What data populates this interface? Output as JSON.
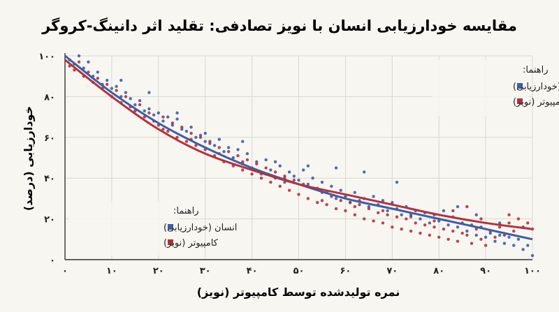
{
  "chart_data": {
    "type": "scatter",
    "title": "مقایسه خودارزیابی انسان با نویز تصادفی: تقلید اثر دانینگ-کروگر",
    "xlabel": "نمره تولیدشده توسط کامپیوتر (نویز)",
    "ylabel": "خودارزیابی (درصد)",
    "xlim": [
      0,
      100
    ],
    "ylim": [
      0,
      100
    ],
    "x_ticks": [
      "۰",
      "۱۰",
      "۲۰",
      "۳۰",
      "۴۰",
      "۵۰",
      "۶۰",
      "۷۰",
      "۸۰",
      "۹۰",
      "۱۰۰"
    ],
    "y_ticks": [
      "۰",
      "۲۰",
      "۴۰",
      "۶۰",
      "۸۰",
      "۱۰۰"
    ],
    "x_tick_values": [
      0,
      10,
      20,
      30,
      40,
      50,
      60,
      70,
      80,
      90,
      100
    ],
    "y_tick_values": [
      0,
      20,
      40,
      60,
      80,
      100
    ],
    "grid": true,
    "legends": [
      {
        "placement": "top-right",
        "title": "راهنما:",
        "entries": [
          "انسان (خودارزیابی)",
          "کامپیوتر (نویز)"
        ]
      },
      {
        "placement": "bottom-left",
        "title": "راهنما:",
        "entries": [
          "انسان (خودارزیابی)",
          "کامپیوتر (نویز)"
        ]
      }
    ],
    "series": [
      {
        "name": "انسان (خودارزیابی)",
        "color": "#3a5ea8",
        "trend": {
          "x": [
            0,
            10,
            20,
            30,
            40,
            50,
            60,
            70,
            80,
            90,
            100
          ],
          "y": [
            100,
            82,
            67,
            55,
            45,
            37,
            30,
            25,
            20,
            15,
            10
          ]
        },
        "points": [
          [
            1,
            98
          ],
          [
            2,
            96
          ],
          [
            3,
            100
          ],
          [
            4,
            94
          ],
          [
            5,
            97
          ],
          [
            6,
            90
          ],
          [
            7,
            92
          ],
          [
            8,
            86
          ],
          [
            9,
            88
          ],
          [
            10,
            84
          ],
          [
            11,
            85
          ],
          [
            12,
            80
          ],
          [
            13,
            82
          ],
          [
            14,
            79
          ],
          [
            15,
            76
          ],
          [
            16,
            78
          ],
          [
            17,
            73
          ],
          [
            18,
            74
          ],
          [
            19,
            71
          ],
          [
            20,
            72
          ],
          [
            21,
            68
          ],
          [
            22,
            70
          ],
          [
            23,
            66
          ],
          [
            24,
            69
          ],
          [
            25,
            64
          ],
          [
            26,
            63
          ],
          [
            27,
            65
          ],
          [
            28,
            60
          ],
          [
            29,
            61
          ],
          [
            30,
            58
          ],
          [
            31,
            57
          ],
          [
            32,
            56
          ],
          [
            33,
            59
          ],
          [
            34,
            53
          ],
          [
            35,
            55
          ],
          [
            36,
            50
          ],
          [
            37,
            54
          ],
          [
            38,
            47
          ],
          [
            39,
            52
          ],
          [
            40,
            45
          ],
          [
            41,
            48
          ],
          [
            42,
            42
          ],
          [
            43,
            49
          ],
          [
            44,
            44
          ],
          [
            45,
            40
          ],
          [
            46,
            46
          ],
          [
            47,
            38
          ],
          [
            48,
            43
          ],
          [
            49,
            41
          ],
          [
            50,
            39
          ],
          [
            51,
            44
          ],
          [
            52,
            37
          ],
          [
            53,
            40
          ],
          [
            54,
            35
          ],
          [
            55,
            38
          ],
          [
            56,
            33
          ],
          [
            57,
            36
          ],
          [
            58,
            30
          ],
          [
            59,
            34
          ],
          [
            60,
            31
          ],
          [
            61,
            28
          ],
          [
            62,
            33
          ],
          [
            63,
            29
          ],
          [
            64,
            30
          ],
          [
            65,
            26
          ],
          [
            66,
            31
          ],
          [
            67,
            27
          ],
          [
            68,
            29
          ],
          [
            69,
            24
          ],
          [
            70,
            28
          ],
          [
            71,
            25
          ],
          [
            72,
            22
          ],
          [
            73,
            26
          ],
          [
            74,
            21
          ],
          [
            75,
            24
          ],
          [
            76,
            20
          ],
          [
            77,
            23
          ],
          [
            78,
            18
          ],
          [
            79,
            22
          ],
          [
            80,
            19
          ],
          [
            81,
            24
          ],
          [
            82,
            17
          ],
          [
            83,
            21
          ],
          [
            84,
            16
          ],
          [
            85,
            18
          ],
          [
            86,
            14
          ],
          [
            87,
            17
          ],
          [
            88,
            12
          ],
          [
            89,
            16
          ],
          [
            90,
            11
          ],
          [
            91,
            13
          ],
          [
            92,
            9
          ],
          [
            93,
            12
          ],
          [
            94,
            8
          ],
          [
            95,
            11
          ],
          [
            96,
            7
          ],
          [
            97,
            10
          ],
          [
            98,
            5
          ],
          [
            99,
            7
          ],
          [
            100,
            2
          ],
          [
            58,
            45
          ],
          [
            64,
            43
          ],
          [
            71,
            38
          ],
          [
            45,
            48
          ],
          [
            52,
            46
          ],
          [
            38,
            58
          ],
          [
            30,
            62
          ],
          [
            24,
            72
          ],
          [
            18,
            82
          ],
          [
            12,
            88
          ],
          [
            84,
            26
          ],
          [
            88,
            22
          ],
          [
            93,
            18
          ]
        ]
      },
      {
        "name": "کامپیوتر (نویز)",
        "color": "#b5313c",
        "trend": {
          "x": [
            0,
            10,
            20,
            30,
            40,
            50,
            60,
            70,
            80,
            90,
            100
          ],
          "y": [
            98,
            80,
            64,
            52,
            44,
            37,
            32,
            27,
            22,
            18,
            15
          ]
        },
        "points": [
          [
            1,
            95
          ],
          [
            2,
            93
          ],
          [
            3,
            97
          ],
          [
            4,
            90
          ],
          [
            5,
            92
          ],
          [
            6,
            87
          ],
          [
            7,
            89
          ],
          [
            8,
            84
          ],
          [
            9,
            86
          ],
          [
            10,
            80
          ],
          [
            11,
            83
          ],
          [
            12,
            77
          ],
          [
            13,
            80
          ],
          [
            14,
            75
          ],
          [
            15,
            73
          ],
          [
            16,
            76
          ],
          [
            17,
            70
          ],
          [
            18,
            72
          ],
          [
            19,
            68
          ],
          [
            20,
            66
          ],
          [
            21,
            70
          ],
          [
            22,
            63
          ],
          [
            23,
            67
          ],
          [
            24,
            60
          ],
          [
            25,
            65
          ],
          [
            26,
            58
          ],
          [
            27,
            62
          ],
          [
            28,
            56
          ],
          [
            29,
            60
          ],
          [
            30,
            54
          ],
          [
            31,
            58
          ],
          [
            32,
            51
          ],
          [
            33,
            55
          ],
          [
            34,
            48
          ],
          [
            35,
            53
          ],
          [
            36,
            46
          ],
          [
            37,
            51
          ],
          [
            38,
            44
          ],
          [
            39,
            49
          ],
          [
            40,
            42
          ],
          [
            41,
            47
          ],
          [
            42,
            40
          ],
          [
            43,
            45
          ],
          [
            44,
            38
          ],
          [
            45,
            43
          ],
          [
            46,
            36
          ],
          [
            47,
            41
          ],
          [
            48,
            34
          ],
          [
            49,
            39
          ],
          [
            50,
            32
          ],
          [
            51,
            37
          ],
          [
            52,
            30
          ],
          [
            53,
            35
          ],
          [
            54,
            28
          ],
          [
            55,
            33
          ],
          [
            56,
            27
          ],
          [
            57,
            31
          ],
          [
            58,
            25
          ],
          [
            59,
            29
          ],
          [
            60,
            24
          ],
          [
            61,
            28
          ],
          [
            62,
            22
          ],
          [
            63,
            27
          ],
          [
            64,
            20
          ],
          [
            65,
            25
          ],
          [
            66,
            19
          ],
          [
            67,
            23
          ],
          [
            68,
            18
          ],
          [
            69,
            22
          ],
          [
            70,
            16
          ],
          [
            71,
            21
          ],
          [
            72,
            15
          ],
          [
            73,
            20
          ],
          [
            74,
            14
          ],
          [
            75,
            18
          ],
          [
            76,
            13
          ],
          [
            77,
            17
          ],
          [
            78,
            12
          ],
          [
            79,
            16
          ],
          [
            80,
            11
          ],
          [
            81,
            15
          ],
          [
            82,
            10
          ],
          [
            83,
            14
          ],
          [
            84,
            9
          ],
          [
            85,
            13
          ],
          [
            86,
            12
          ],
          [
            87,
            8
          ],
          [
            88,
            15
          ],
          [
            89,
            10
          ],
          [
            90,
            7
          ],
          [
            91,
            14
          ],
          [
            92,
            11
          ],
          [
            93,
            16
          ],
          [
            94,
            12
          ],
          [
            95,
            18
          ],
          [
            96,
            14
          ],
          [
            97,
            20
          ],
          [
            98,
            16
          ],
          [
            99,
            18
          ],
          [
            100,
            15
          ],
          [
            21,
            64
          ],
          [
            27,
            59
          ],
          [
            33,
            52
          ],
          [
            38,
            48
          ],
          [
            47,
            40
          ],
          [
            55,
            29
          ],
          [
            62,
            26
          ],
          [
            68,
            24
          ],
          [
            74,
            22
          ],
          [
            79,
            19
          ],
          [
            83,
            24
          ],
          [
            89,
            20
          ],
          [
            95,
            22
          ],
          [
            86,
            26
          ]
        ]
      }
    ]
  }
}
